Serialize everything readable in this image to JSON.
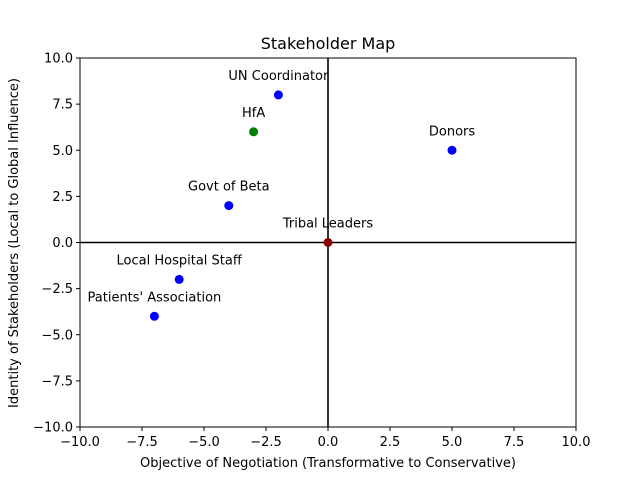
{
  "chart_data": {
    "type": "scatter",
    "title": "Stakeholder Map",
    "xlabel": "Objective of Negotiation (Transformative to Conservative)",
    "ylabel": "Identity of Stakeholders (Local to Global Influence)",
    "xlim": [
      -10.0,
      10.0
    ],
    "ylim": [
      -10.0,
      10.0
    ],
    "grid": false,
    "xticks": [
      -10.0,
      -7.5,
      -5.0,
      -2.5,
      0.0,
      2.5,
      5.0,
      7.5,
      10.0
    ],
    "xtick_labels": [
      "−10.0",
      "−7.5",
      "−5.0",
      "−2.5",
      "0.0",
      "2.5",
      "5.0",
      "7.5",
      "10.0"
    ],
    "yticks": [
      10.0,
      7.5,
      5.0,
      2.5,
      0.0,
      -2.5,
      -5.0,
      -7.5,
      -10.0
    ],
    "ytick_labels": [
      "10.0",
      "7.5",
      "5.0",
      "2.5",
      "0.0",
      "−2.5",
      "−5.0",
      "−7.5",
      "−10.0"
    ],
    "reference_lines": {
      "x": 0,
      "y": 0,
      "color": "#000000"
    },
    "points": [
      {
        "label": "UN Coordinator",
        "x": -2,
        "y": 8,
        "color": "#0000ff"
      },
      {
        "label": "HfA",
        "x": -3,
        "y": 6,
        "color": "#008000"
      },
      {
        "label": "Donors",
        "x": 5,
        "y": 5,
        "color": "#0000ff"
      },
      {
        "label": "Govt of Beta",
        "x": -4,
        "y": 2,
        "color": "#0000ff"
      },
      {
        "label": "Tribal Leaders",
        "x": 0,
        "y": 0,
        "color": "#8b0000"
      },
      {
        "label": "Local Hospital Staff",
        "x": -6,
        "y": -2,
        "color": "#0000ff"
      },
      {
        "label": "Patients' Association",
        "x": -7,
        "y": -4,
        "color": "#0000ff"
      }
    ]
  }
}
